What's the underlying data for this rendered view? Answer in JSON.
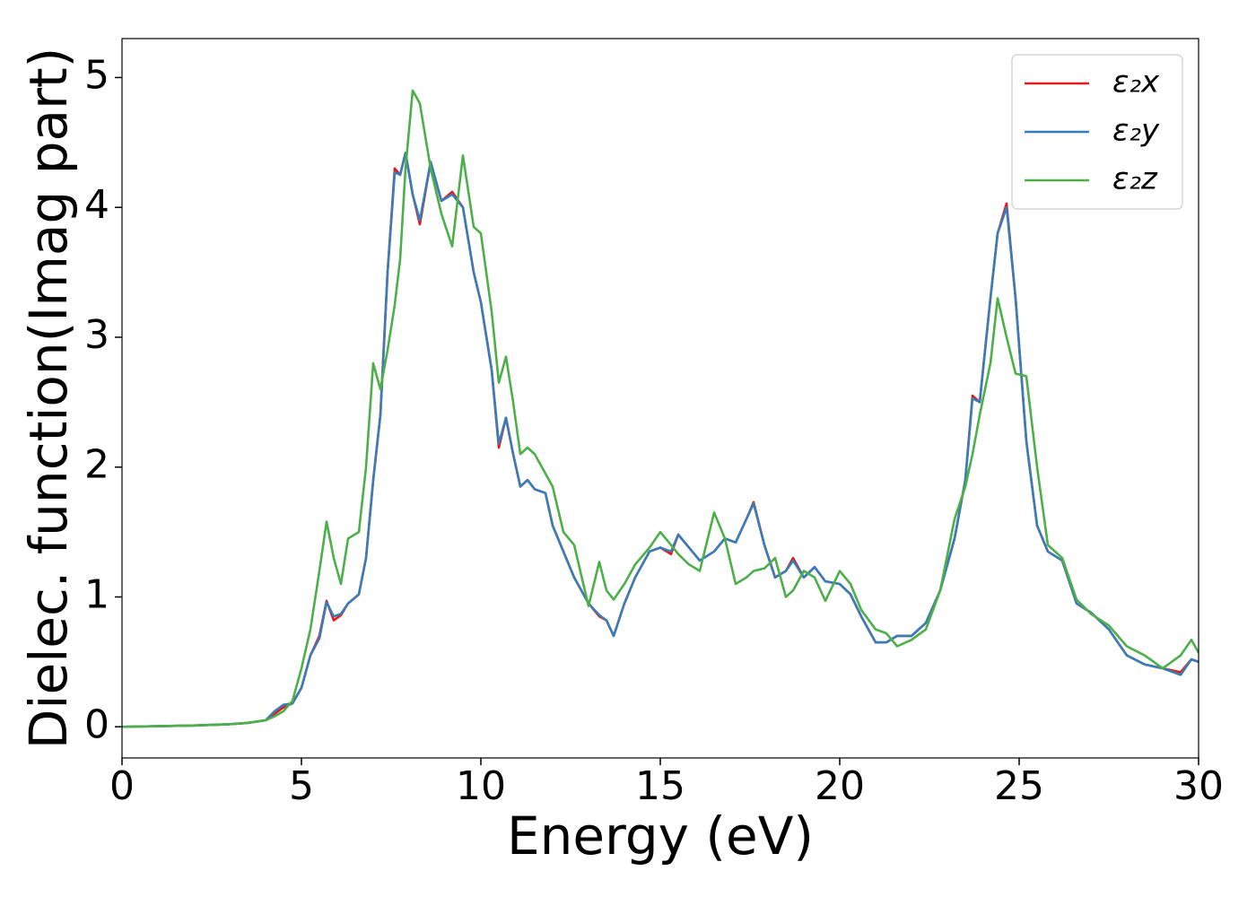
{
  "chart_data": {
    "type": "line",
    "xlabel": "Energy (eV)",
    "ylabel": "Dielec. function(Imag part)",
    "xlim": [
      0,
      30
    ],
    "ylim": [
      -0.24,
      5.3
    ],
    "xticks": [
      0,
      5,
      10,
      15,
      20,
      25,
      30
    ],
    "yticks": [
      0,
      1,
      2,
      3,
      4,
      5
    ],
    "legend": "upper right",
    "x": [
      0,
      1,
      2,
      3,
      3.5,
      4,
      4.25,
      4.5,
      4.75,
      5,
      5.25,
      5.5,
      5.7,
      5.9,
      6.1,
      6.3,
      6.6,
      6.8,
      7,
      7.2,
      7.4,
      7.6,
      7.75,
      7.9,
      8.1,
      8.3,
      8.6,
      8.9,
      9.2,
      9.5,
      9.8,
      10,
      10.3,
      10.5,
      10.7,
      10.9,
      11.1,
      11.3,
      11.5,
      11.8,
      12,
      12.3,
      12.6,
      13,
      13.3,
      13.5,
      13.7,
      14,
      14.3,
      14.7,
      15,
      15.3,
      15.5,
      15.8,
      16.1,
      16.5,
      16.8,
      17.1,
      17.4,
      17.6,
      17.9,
      18.2,
      18.5,
      18.7,
      19,
      19.3,
      19.6,
      20,
      20.3,
      20.6,
      21,
      21.3,
      21.6,
      22,
      22.4,
      22.8,
      23.2,
      23.5,
      23.7,
      23.9,
      24.2,
      24.4,
      24.65,
      24.9,
      25.2,
      25.5,
      25.8,
      26.2,
      26.6,
      27,
      27.5,
      28,
      28.5,
      29,
      29.5,
      29.8,
      30
    ],
    "series": [
      {
        "name": "ε₂x",
        "color": "#e41a1c",
        "values": [
          0,
          0.005,
          0.01,
          0.02,
          0.03,
          0.05,
          0.1,
          0.15,
          0.18,
          0.3,
          0.55,
          0.7,
          0.97,
          0.82,
          0.86,
          0.95,
          1.02,
          1.3,
          1.9,
          2.4,
          3.5,
          4.3,
          4.25,
          4.42,
          4.1,
          3.87,
          4.35,
          4.05,
          4.12,
          4.0,
          3.5,
          3.27,
          2.75,
          2.15,
          2.38,
          2.1,
          1.85,
          1.9,
          1.83,
          1.8,
          1.55,
          1.35,
          1.15,
          0.95,
          0.85,
          0.82,
          0.7,
          0.95,
          1.15,
          1.35,
          1.38,
          1.33,
          1.48,
          1.38,
          1.28,
          1.35,
          1.45,
          1.42,
          1.6,
          1.73,
          1.4,
          1.15,
          1.2,
          1.3,
          1.15,
          1.23,
          1.12,
          1.1,
          1.02,
          0.85,
          0.65,
          0.65,
          0.7,
          0.7,
          0.8,
          1.05,
          1.45,
          1.9,
          2.55,
          2.5,
          3.3,
          3.8,
          4.03,
          3.3,
          2.2,
          1.55,
          1.35,
          1.28,
          0.95,
          0.88,
          0.75,
          0.55,
          0.48,
          0.45,
          0.42,
          0.52,
          0.5
        ]
      },
      {
        "name": "ε₂y",
        "color": "#377eb8",
        "values": [
          0,
          0.005,
          0.01,
          0.02,
          0.03,
          0.05,
          0.12,
          0.17,
          0.18,
          0.3,
          0.55,
          0.68,
          0.96,
          0.85,
          0.87,
          0.95,
          1.02,
          1.3,
          1.9,
          2.4,
          3.5,
          4.27,
          4.25,
          4.42,
          4.1,
          3.9,
          4.35,
          4.05,
          4.1,
          4.0,
          3.5,
          3.27,
          2.75,
          2.18,
          2.38,
          2.1,
          1.85,
          1.9,
          1.83,
          1.8,
          1.55,
          1.35,
          1.15,
          0.95,
          0.86,
          0.82,
          0.7,
          0.95,
          1.15,
          1.35,
          1.38,
          1.35,
          1.48,
          1.38,
          1.28,
          1.35,
          1.45,
          1.42,
          1.6,
          1.72,
          1.4,
          1.15,
          1.2,
          1.28,
          1.15,
          1.23,
          1.12,
          1.1,
          1.02,
          0.85,
          0.65,
          0.65,
          0.7,
          0.7,
          0.8,
          1.05,
          1.45,
          1.9,
          2.53,
          2.5,
          3.3,
          3.8,
          4.0,
          3.3,
          2.2,
          1.55,
          1.35,
          1.28,
          0.95,
          0.88,
          0.75,
          0.55,
          0.48,
          0.45,
          0.4,
          0.52,
          0.5
        ]
      },
      {
        "name": "ε₂z",
        "color": "#4daf4a",
        "values": [
          0,
          0.005,
          0.01,
          0.02,
          0.03,
          0.05,
          0.08,
          0.12,
          0.2,
          0.45,
          0.75,
          1.2,
          1.58,
          1.3,
          1.1,
          1.45,
          1.5,
          2.0,
          2.8,
          2.6,
          2.9,
          3.25,
          3.6,
          4.3,
          4.9,
          4.8,
          4.3,
          3.95,
          3.7,
          4.4,
          3.85,
          3.8,
          3.2,
          2.65,
          2.85,
          2.5,
          2.1,
          2.15,
          2.1,
          1.95,
          1.85,
          1.5,
          1.4,
          0.93,
          1.27,
          1.05,
          0.98,
          1.1,
          1.25,
          1.38,
          1.5,
          1.4,
          1.33,
          1.25,
          1.2,
          1.65,
          1.45,
          1.1,
          1.15,
          1.2,
          1.22,
          1.3,
          1.0,
          1.05,
          1.2,
          1.15,
          0.97,
          1.2,
          1.1,
          0.9,
          0.75,
          0.72,
          0.62,
          0.67,
          0.75,
          1.05,
          1.6,
          1.85,
          2.1,
          2.4,
          2.8,
          3.3,
          3.0,
          2.72,
          2.7,
          2.0,
          1.4,
          1.3,
          0.98,
          0.87,
          0.78,
          0.62,
          0.55,
          0.45,
          0.55,
          0.67,
          0.57
        ]
      }
    ]
  }
}
